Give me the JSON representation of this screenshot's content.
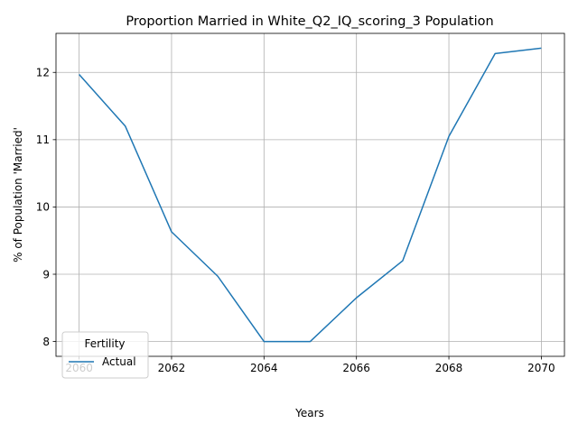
{
  "chart_data": {
    "type": "line",
    "title": "Proportion Married in White_Q2_IQ_scoring_3 Population",
    "xlabel": "Years",
    "ylabel": "% of Population 'Married'",
    "x": [
      2060,
      2061,
      2062,
      2063,
      2064,
      2065,
      2066,
      2067,
      2068,
      2069,
      2070
    ],
    "series": [
      {
        "name": "Actual",
        "color": "#1f77b4",
        "values": [
          11.97,
          11.2,
          9.63,
          8.97,
          8.0,
          8.0,
          8.65,
          9.2,
          11.05,
          12.28,
          12.36
        ]
      }
    ],
    "xlim": [
      2059.5,
      2070.5
    ],
    "ylim": [
      7.78,
      12.58
    ],
    "xticks": [
      2060,
      2062,
      2064,
      2066,
      2068,
      2070
    ],
    "yticks": [
      8,
      9,
      10,
      11,
      12
    ],
    "grid": true,
    "legend": {
      "title": "Fertility",
      "placement": "lower-left"
    }
  }
}
